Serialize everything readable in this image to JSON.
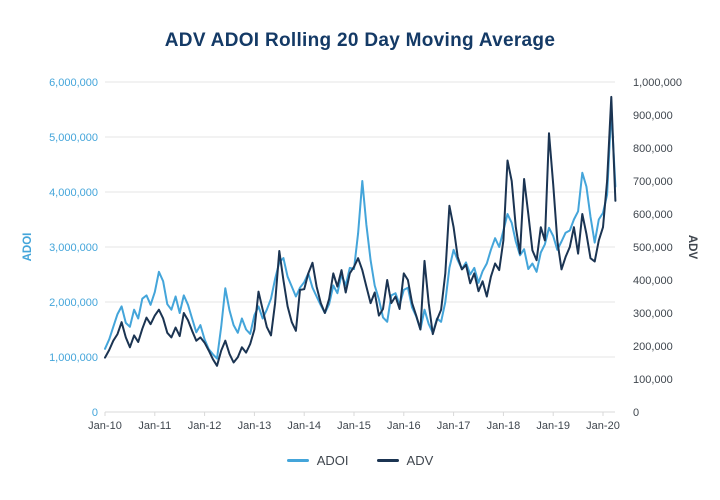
{
  "title": "ADV ADOI Rolling 20 Day Moving Average",
  "colors": {
    "adoi_line": "#44a5da",
    "adv_line": "#1b3452",
    "title_text": "#143a66",
    "axis_text": "#3f464e",
    "left_axis_text": "#44a5da",
    "grid": "#e6e6e6",
    "axis_line": "#d9d9d9"
  },
  "left_axis": {
    "label": "ADOI",
    "ticks": [
      "0",
      "1,000,000",
      "2,000,000",
      "3,000,000",
      "4,000,000",
      "5,000,000",
      "6,000,000"
    ],
    "max": 6000000
  },
  "right_axis": {
    "label": "ADV",
    "ticks": [
      "0",
      "100,000",
      "200,000",
      "300,000",
      "400,000",
      "500,000",
      "600,000",
      "700,000",
      "800,000",
      "900,000",
      "1,000,000"
    ],
    "max": 1000000
  },
  "x_axis": {
    "ticks": [
      "Jan-10",
      "Jan-11",
      "Jan-12",
      "Jan-13",
      "Jan-14",
      "Jan-15",
      "Jan-16",
      "Jan-17",
      "Jan-18",
      "Jan-19",
      "Jan-20"
    ]
  },
  "legend": [
    {
      "label": "ADOI",
      "color": "#44a5da"
    },
    {
      "label": "ADV",
      "color": "#1b3452"
    }
  ],
  "chart_data": {
    "type": "line",
    "title": "ADV ADOI Rolling 20 Day Moving Average",
    "x_unit": "months since Jan-2010 (approx. monthly samples, Jan-2010 to Mar-2020)",
    "x_range_labels": [
      "Jan-10",
      "Jan-20"
    ],
    "grid": true,
    "legend_position": "bottom",
    "series": [
      {
        "name": "ADOI",
        "axis": "left",
        "axis_range": [
          0,
          6000000
        ],
        "values": [
          1150000,
          1320000,
          1550000,
          1780000,
          1920000,
          1620000,
          1550000,
          1860000,
          1700000,
          2060000,
          2120000,
          1950000,
          2180000,
          2550000,
          2380000,
          1960000,
          1860000,
          2100000,
          1800000,
          2120000,
          1950000,
          1700000,
          1450000,
          1580000,
          1320000,
          1140000,
          1050000,
          970000,
          1550000,
          2250000,
          1850000,
          1580000,
          1440000,
          1700000,
          1500000,
          1420000,
          1760000,
          1920000,
          1700000,
          1860000,
          2060000,
          2420000,
          2720000,
          2800000,
          2460000,
          2280000,
          2100000,
          2260000,
          2360000,
          2520000,
          2260000,
          2100000,
          1940000,
          1800000,
          1960000,
          2300000,
          2160000,
          2500000,
          2300000,
          2620000,
          2600000,
          3250000,
          4200000,
          3400000,
          2760000,
          2300000,
          2050000,
          1720000,
          1640000,
          2120000,
          2160000,
          1950000,
          2220000,
          2260000,
          1900000,
          1740000,
          1500000,
          1860000,
          1600000,
          1440000,
          1700000,
          1640000,
          2000000,
          2620000,
          2950000,
          2760000,
          2600000,
          2720000,
          2500000,
          2620000,
          2350000,
          2560000,
          2700000,
          2950000,
          3160000,
          3000000,
          3300000,
          3600000,
          3440000,
          3100000,
          2850000,
          2960000,
          2600000,
          2700000,
          2550000,
          2900000,
          3050000,
          3350000,
          3200000,
          2950000,
          3100000,
          3260000,
          3300000,
          3500000,
          3650000,
          4350000,
          4100000,
          3550000,
          3080000,
          3500000,
          3620000,
          3950000,
          5500000,
          4100000
        ]
      },
      {
        "name": "ADV",
        "axis": "right",
        "axis_range": [
          0,
          1000000
        ],
        "values": [
          165000,
          188000,
          216000,
          236000,
          272000,
          226000,
          196000,
          232000,
          212000,
          252000,
          286000,
          266000,
          292000,
          310000,
          284000,
          240000,
          226000,
          256000,
          230000,
          300000,
          278000,
          246000,
          216000,
          226000,
          210000,
          186000,
          160000,
          140000,
          186000,
          216000,
          176000,
          150000,
          166000,
          196000,
          180000,
          206000,
          250000,
          365000,
          310000,
          258000,
          232000,
          330000,
          488000,
          400000,
          320000,
          272000,
          246000,
          370000,
          372000,
          420000,
          452000,
          380000,
          330000,
          300000,
          342000,
          420000,
          380000,
          430000,
          362000,
          420000,
          440000,
          466000,
          430000,
          380000,
          330000,
          362000,
          292000,
          312000,
          400000,
          330000,
          350000,
          312000,
          420000,
          400000,
          330000,
          292000,
          250000,
          458000,
          330000,
          236000,
          280000,
          310000,
          420000,
          625000,
          560000,
          470000,
          432000,
          446000,
          390000,
          420000,
          366000,
          396000,
          350000,
          410000,
          450000,
          430000,
          520000,
          762000,
          700000,
          560000,
          480000,
          706000,
          600000,
          490000,
          460000,
          560000,
          520000,
          845000,
          690000,
          520000,
          432000,
          470000,
          500000,
          560000,
          480000,
          600000,
          540000,
          466000,
          456000,
          520000,
          560000,
          700000,
          955000,
          640000
        ]
      }
    ]
  }
}
